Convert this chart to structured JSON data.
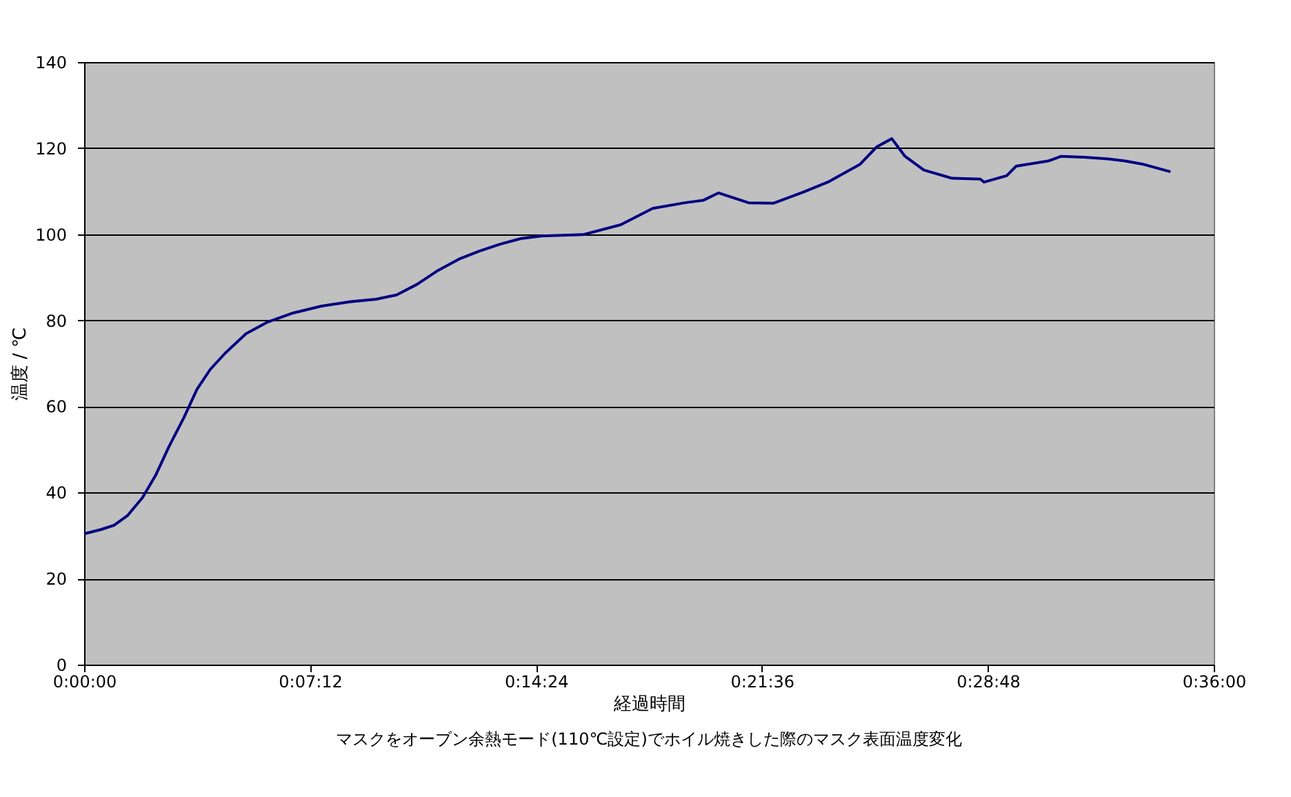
{
  "chart_data": {
    "type": "line",
    "title": "マスクをオーブン余熱モード(110℃設定)でホイル焼きした際のマスク表面温度変化",
    "xlabel": "経過時間",
    "ylabel": "温度 / ℃",
    "x": [
      0,
      0.009,
      0.016,
      0.023,
      0.031,
      0.038,
      0.045,
      0.053,
      0.06,
      0.067,
      0.075,
      0.086,
      0.097,
      0.111,
      0.126,
      0.141,
      0.155,
      0.166,
      0.177,
      0.188,
      0.199,
      0.21,
      0.221,
      0.232,
      0.243,
      0.265,
      0.285,
      0.302,
      0.319,
      0.329,
      0.337,
      0.353,
      0.366,
      0.382,
      0.395,
      0.412,
      0.421,
      0.429,
      0.436,
      0.446,
      0.461,
      0.476,
      0.478,
      0.49,
      0.495,
      0.512,
      0.519,
      0.531,
      0.544,
      0.553,
      0.563,
      0.577
    ],
    "series": [
      {
        "color": "#000080",
        "values": [
          30.4,
          31.4,
          32.4,
          34.6,
          38.8,
          44,
          50.6,
          57.4,
          64,
          68.6,
          72.4,
          76.9,
          79.5,
          81.7,
          83.3,
          84.3,
          84.9,
          85.9,
          88.4,
          91.6,
          94.2,
          96.1,
          97.7,
          99,
          99.6,
          99.9,
          102.2,
          106,
          107.3,
          107.9,
          109.6,
          107.3,
          107.2,
          109.8,
          112.1,
          116.2,
          120.3,
          122.2,
          118.1,
          114.9,
          113,
          112.8,
          112.1,
          113.6,
          115.8,
          117,
          118.1,
          117.9,
          117.5,
          117,
          116.2,
          114.5
        ]
      }
    ],
    "xlim": [
      0,
      0.6
    ],
    "xticks": [
      {
        "value": 0,
        "label": "0:00:00"
      },
      {
        "value": 0.12,
        "label": "0:07:12"
      },
      {
        "value": 0.24,
        "label": "0:14:24"
      },
      {
        "value": 0.36,
        "label": "0:21:36"
      },
      {
        "value": 0.48,
        "label": "0:28:48"
      },
      {
        "value": 0.6,
        "label": "0:36:00"
      }
    ],
    "ylim": [
      0,
      140
    ],
    "yticks": [
      0,
      20,
      40,
      60,
      80,
      100,
      120,
      140
    ],
    "grid": "y",
    "marker": "none",
    "line_style": "solid"
  }
}
